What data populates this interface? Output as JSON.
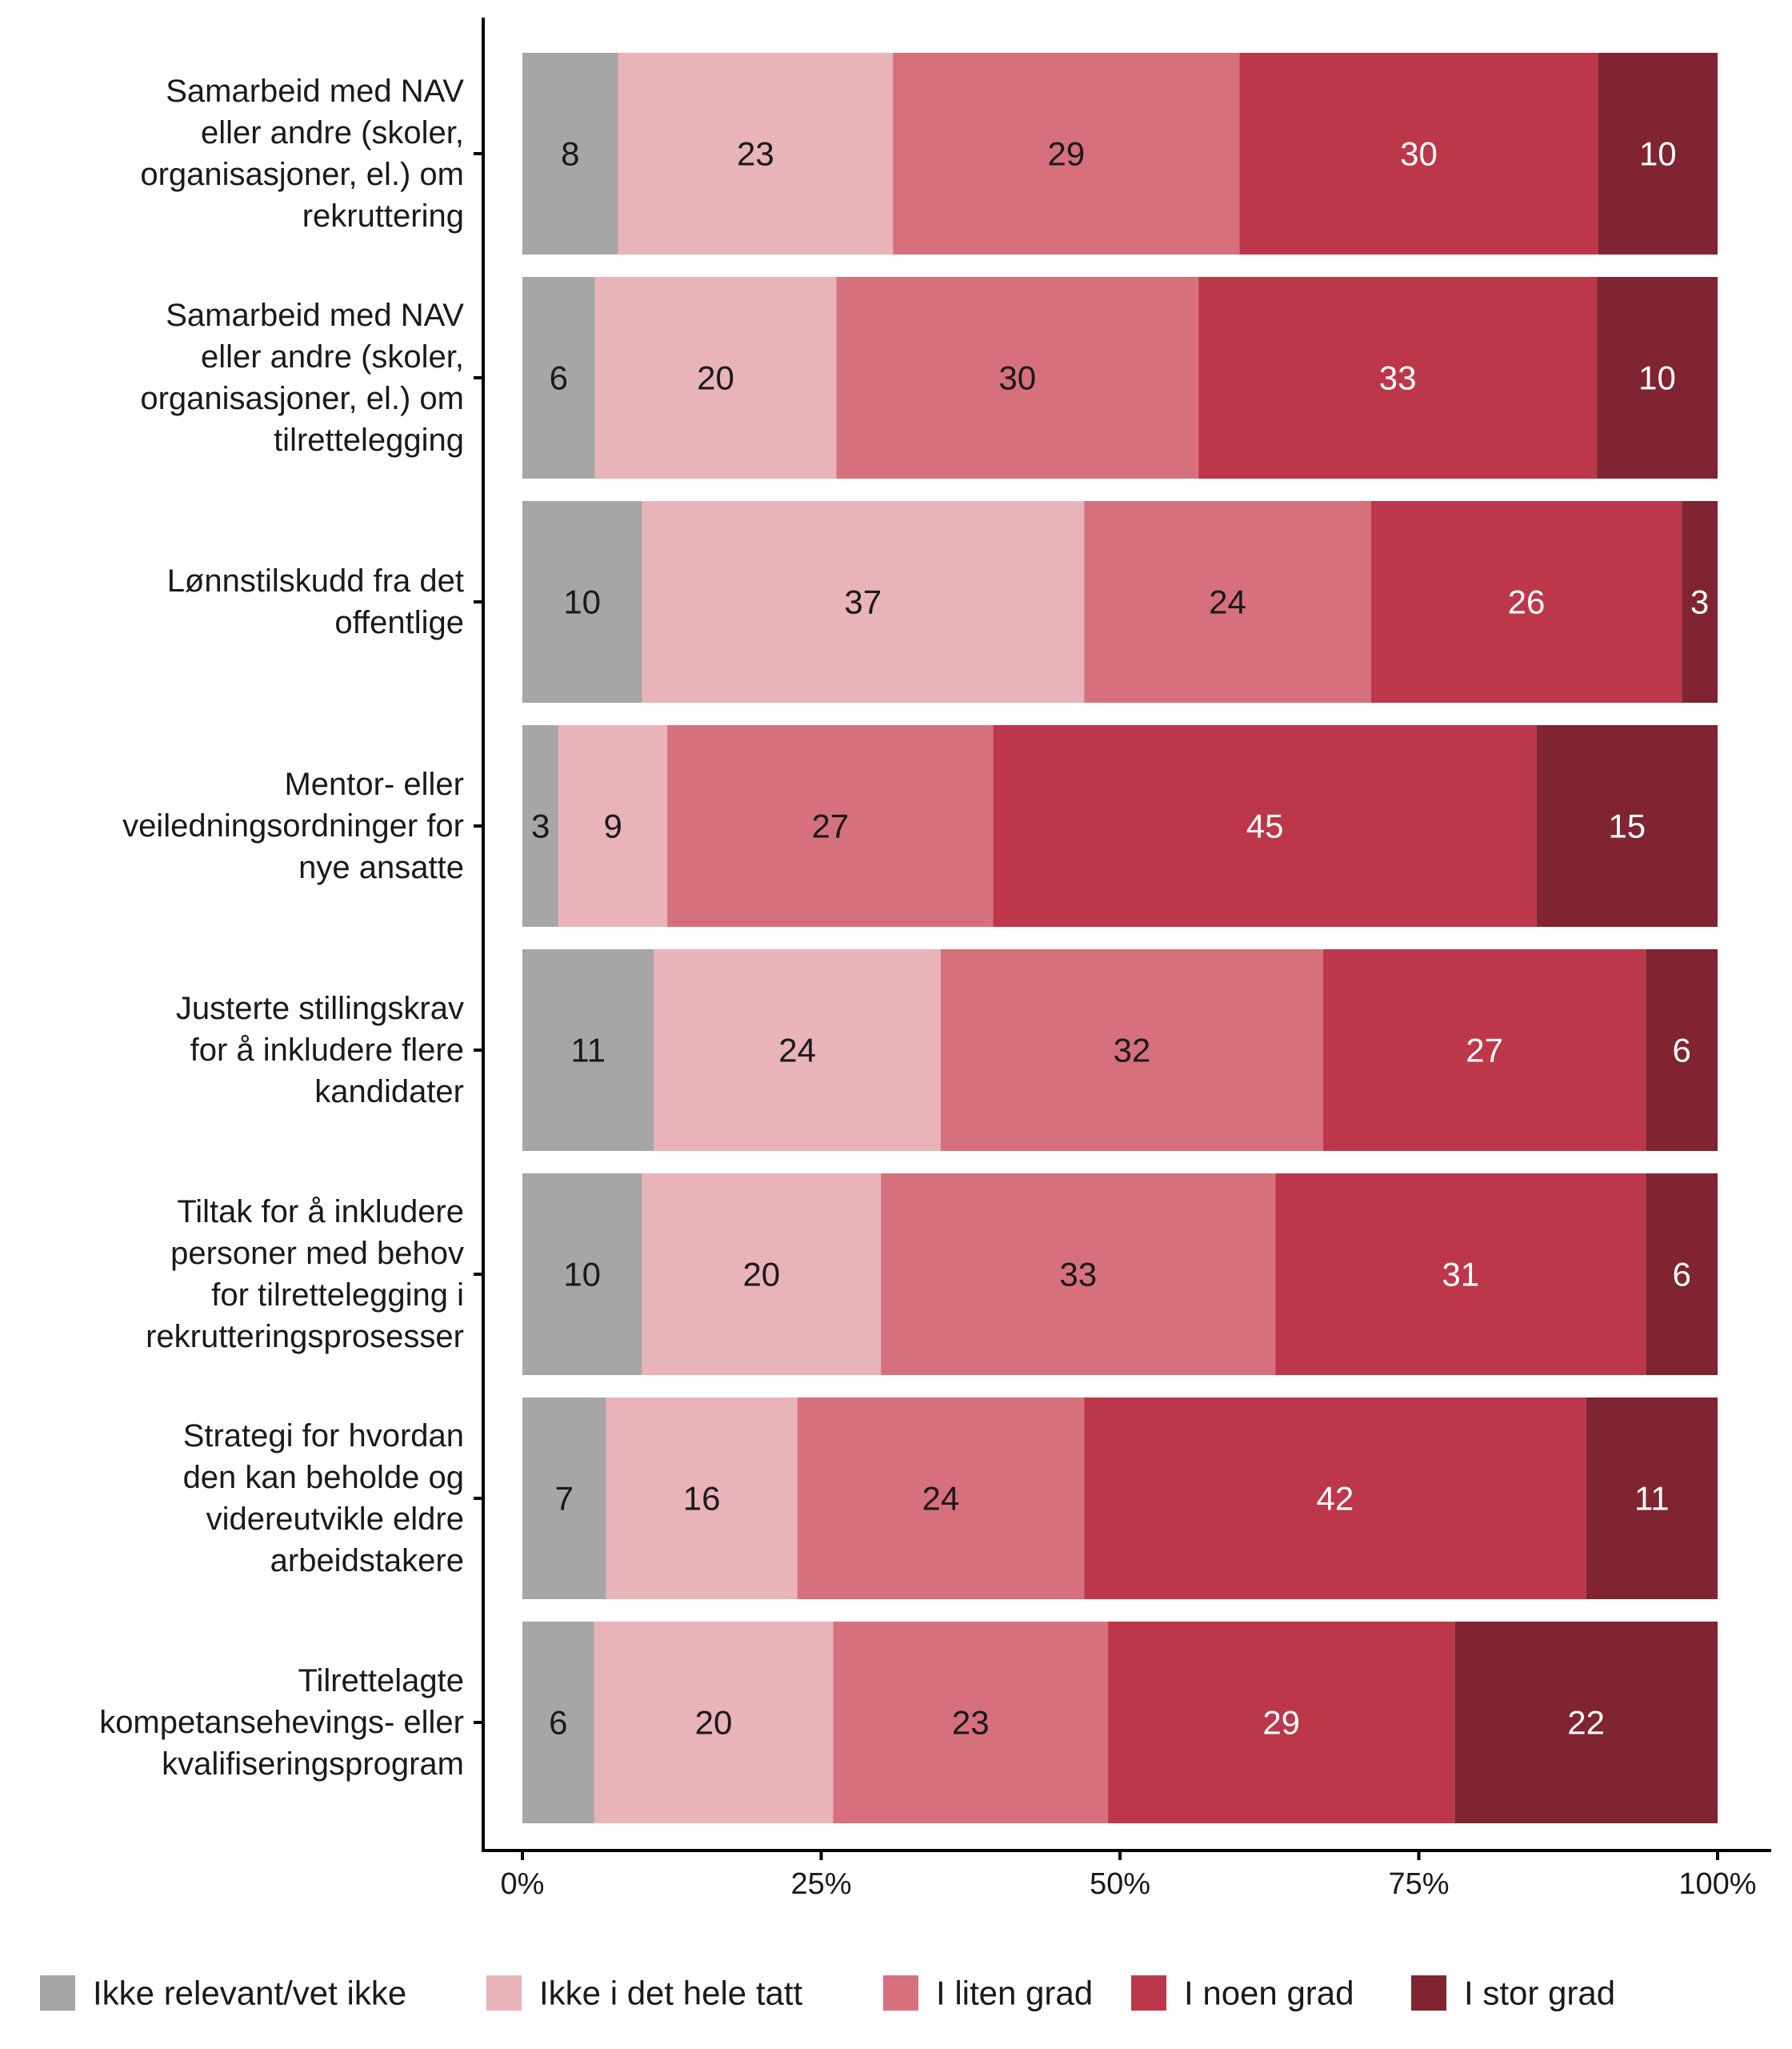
{
  "chart_data": {
    "type": "bar",
    "orientation": "horizontal",
    "stacked": "percent",
    "xlim": [
      0,
      100
    ],
    "x_ticks": [
      "0%",
      "25%",
      "50%",
      "75%",
      "100%"
    ],
    "categories": [
      [
        "Samarbeid med NAV",
        "eller andre (skoler,",
        "organisasjoner, el.) om",
        "rekruttering"
      ],
      [
        "Samarbeid med NAV",
        "eller andre (skoler,",
        "organisasjoner, el.) om",
        "tilrettelegging"
      ],
      [
        "Lønnstilskudd fra det",
        "offentlige"
      ],
      [
        "Mentor- eller",
        "veiledningsordninger for",
        "nye ansatte"
      ],
      [
        "Justerte stillingskrav",
        "for å inkludere flere",
        "kandidater"
      ],
      [
        "Tiltak for å inkludere",
        "personer med behov",
        "for tilrettelegging i",
        "rekrutteringsprosesser"
      ],
      [
        "Strategi for hvordan",
        "den kan beholde og",
        "videreutvikle eldre",
        "arbeidstakere"
      ],
      [
        "Tilrettelagte",
        "kompetansehevings- eller",
        "kvalifiseringsprogram"
      ]
    ],
    "series": [
      {
        "name": "Ikke relevant/vet ikke",
        "color": "#a6a6a6",
        "label_color": "#1a1a1a",
        "values": [
          8,
          6,
          10,
          3,
          11,
          10,
          7,
          6
        ]
      },
      {
        "name": "Ikke i det hele tatt",
        "color": "#e8b3b9",
        "label_color": "#1a1a1a",
        "values": [
          23,
          20,
          37,
          9,
          24,
          20,
          16,
          20
        ]
      },
      {
        "name": "I liten grad",
        "color": "#d6707d",
        "label_color": "#1a1a1a",
        "values": [
          29,
          30,
          24,
          27,
          32,
          33,
          24,
          23
        ]
      },
      {
        "name": "I noen grad",
        "color": "#bd374a",
        "label_color": "#ffffff",
        "values": [
          30,
          33,
          26,
          45,
          27,
          31,
          42,
          29
        ]
      },
      {
        "name": "I stor grad",
        "color": "#7f2430",
        "label_color": "#ffffff",
        "values": [
          10,
          10,
          3,
          15,
          6,
          6,
          11,
          22
        ]
      }
    ],
    "legend_position": "bottom",
    "grid": false
  }
}
